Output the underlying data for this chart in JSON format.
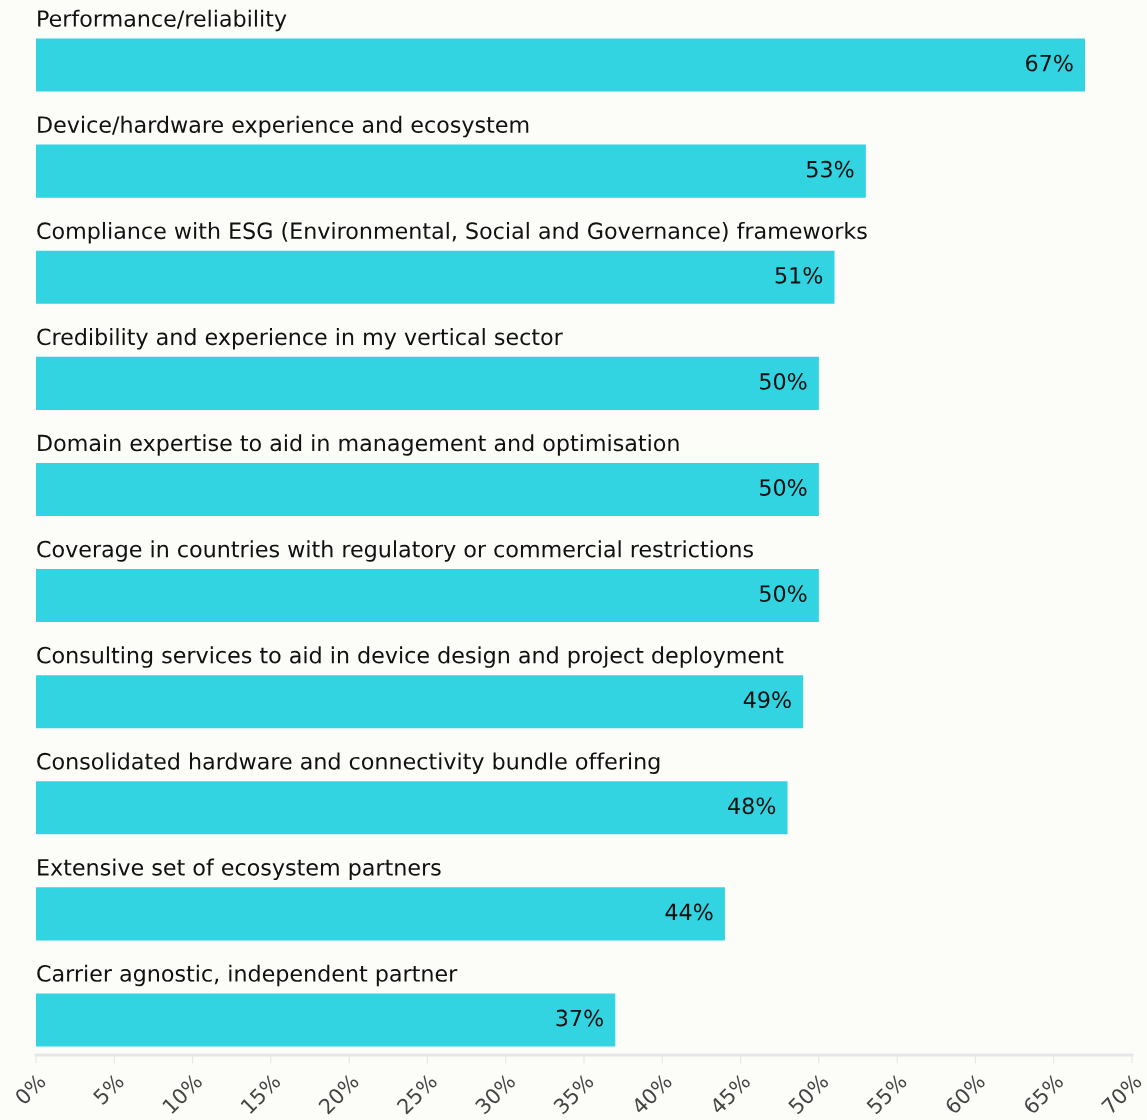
{
  "chart_data": {
    "type": "bar",
    "orientation": "horizontal",
    "categories": [
      "Performance/reliability",
      "Device/hardware experience and ecosystem",
      "Compliance with ESG (Environmental, Social and Governance) frameworks",
      "Credibility and experience in my vertical sector",
      "Domain expertise to aid in management and optimisation",
      "Coverage in countries with regulatory or commercial restrictions",
      "Consulting services to aid in device design and project deployment",
      "Consolidated hardware and connectivity bundle offering",
      "Extensive set of ecosystem partners",
      "Carrier agnostic, independent partner"
    ],
    "values": [
      67,
      53,
      51,
      50,
      50,
      50,
      49,
      48,
      44,
      37
    ],
    "color": "#31d4e0",
    "value_labels": [
      "67%",
      "53%",
      "51%",
      "50%",
      "50%",
      "50%",
      "49%",
      "48%",
      "44%",
      "37%"
    ],
    "xlim": [
      0,
      70
    ],
    "xticks": [
      {
        "value": 0,
        "label": "0%"
      },
      {
        "value": 5,
        "label": "5%"
      },
      {
        "value": 10,
        "label": "10%"
      },
      {
        "value": 15,
        "label": "15%"
      },
      {
        "value": 20,
        "label": "20%"
      },
      {
        "value": 25,
        "label": "25%"
      },
      {
        "value": 30,
        "label": "30%"
      },
      {
        "value": 35,
        "label": "35%"
      },
      {
        "value": 40,
        "label": "40%"
      },
      {
        "value": 45,
        "label": "45%"
      },
      {
        "value": 50,
        "label": "50%"
      },
      {
        "value": 55,
        "label": "55%"
      },
      {
        "value": 60,
        "label": "60%"
      },
      {
        "value": 65,
        "label": "65%"
      },
      {
        "value": 70,
        "label": "70%"
      }
    ],
    "grid": false,
    "legend": false
  }
}
